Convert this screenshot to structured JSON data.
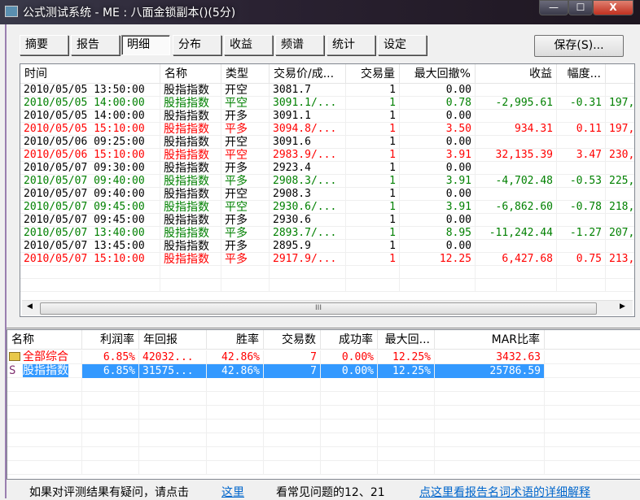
{
  "window": {
    "title": "公式测试系统 - ME : 八面金锁副本()(5分)",
    "minimize": "—",
    "maximize": "☐",
    "close": "X"
  },
  "tabs": [
    "摘要",
    "报告",
    "明细",
    "分布",
    "收益",
    "频谱",
    "统计",
    "设定"
  ],
  "active_tab": "明细",
  "save_label": "保存(S)...",
  "trades": {
    "columns": [
      "时间",
      "名称",
      "类型",
      "交易价/成...",
      "交易量",
      "最大回撤%",
      "收益",
      "幅度..."
    ],
    "rows": [
      {
        "color": "black",
        "time": "2010/05/05 13:50:00",
        "name": "股指指数",
        "type": "开空",
        "price": "3081.7",
        "qty": "1",
        "dd": "0.00",
        "profit": "",
        "amp": "",
        "extra": ""
      },
      {
        "color": "green",
        "time": "2010/05/05 14:00:00",
        "name": "股指指数",
        "type": "平空",
        "price": "3091.1/...",
        "qty": "1",
        "dd": "0.78",
        "profit": "-2,995.61",
        "amp": "-0.31",
        "extra": "197,"
      },
      {
        "color": "black",
        "time": "2010/05/05 14:00:00",
        "name": "股指指数",
        "type": "开多",
        "price": "3091.1",
        "qty": "1",
        "dd": "0.00",
        "profit": "",
        "amp": "",
        "extra": ""
      },
      {
        "color": "red",
        "time": "2010/05/05 15:10:00",
        "name": "股指指数",
        "type": "平多",
        "price": "3094.8/...",
        "qty": "1",
        "dd": "3.50",
        "profit": "934.31",
        "amp": "0.11",
        "extra": "197,"
      },
      {
        "color": "black",
        "time": "2010/05/06 09:25:00",
        "name": "股指指数",
        "type": "开空",
        "price": "3091.6",
        "qty": "1",
        "dd": "0.00",
        "profit": "",
        "amp": "",
        "extra": ""
      },
      {
        "color": "red",
        "time": "2010/05/06 15:10:00",
        "name": "股指指数",
        "type": "平空",
        "price": "2983.9/...",
        "qty": "1",
        "dd": "3.91",
        "profit": "32,135.39",
        "amp": "3.47",
        "extra": "230,"
      },
      {
        "color": "black",
        "time": "2010/05/07 09:30:00",
        "name": "股指指数",
        "type": "开多",
        "price": "2923.4",
        "qty": "1",
        "dd": "0.00",
        "profit": "",
        "amp": "",
        "extra": ""
      },
      {
        "color": "green",
        "time": "2010/05/07 09:40:00",
        "name": "股指指数",
        "type": "平多",
        "price": "2908.3/...",
        "qty": "1",
        "dd": "3.91",
        "profit": "-4,702.48",
        "amp": "-0.53",
        "extra": "225,"
      },
      {
        "color": "black",
        "time": "2010/05/07 09:40:00",
        "name": "股指指数",
        "type": "开空",
        "price": "2908.3",
        "qty": "1",
        "dd": "0.00",
        "profit": "",
        "amp": "",
        "extra": ""
      },
      {
        "color": "green",
        "time": "2010/05/07 09:45:00",
        "name": "股指指数",
        "type": "平空",
        "price": "2930.6/...",
        "qty": "1",
        "dd": "3.91",
        "profit": "-6,862.60",
        "amp": "-0.78",
        "extra": "218,"
      },
      {
        "color": "black",
        "time": "2010/05/07 09:45:00",
        "name": "股指指数",
        "type": "开多",
        "price": "2930.6",
        "qty": "1",
        "dd": "0.00",
        "profit": "",
        "amp": "",
        "extra": ""
      },
      {
        "color": "green",
        "time": "2010/05/07 13:40:00",
        "name": "股指指数",
        "type": "平多",
        "price": "2893.7/...",
        "qty": "1",
        "dd": "8.95",
        "profit": "-11,242.44",
        "amp": "-1.27",
        "extra": "207,"
      },
      {
        "color": "black",
        "time": "2010/05/07 13:45:00",
        "name": "股指指数",
        "type": "开多",
        "price": "2895.9",
        "qty": "1",
        "dd": "0.00",
        "profit": "",
        "amp": "",
        "extra": ""
      },
      {
        "color": "red",
        "time": "2010/05/07 15:10:00",
        "name": "股指指数",
        "type": "平多",
        "price": "2917.9/...",
        "qty": "1",
        "dd": "12.25",
        "profit": "6,427.68",
        "amp": "0.75",
        "extra": "213,"
      }
    ],
    "scroll_grip": "III"
  },
  "summary": {
    "columns": [
      "名称",
      "利润率",
      "年回报",
      "胜率",
      "交易数",
      "成功率",
      "最大回...",
      "MAR比率"
    ],
    "rows": [
      {
        "icon": "folder-icon",
        "name": "全部综合",
        "profit_rate": "6.85%",
        "annual": "42032...",
        "win": "42.86%",
        "trades": "7",
        "success": "0.00%",
        "dd": "12.25%",
        "mar": "3432.63",
        "selected": false
      },
      {
        "icon": "s-icon",
        "icon_text": "S",
        "name": "股指指数",
        "profit_rate": "6.85%",
        "annual": "31575...",
        "win": "42.86%",
        "trades": "7",
        "success": "0.00%",
        "dd": "12.25%",
        "mar": "25786.59",
        "selected": true
      }
    ]
  },
  "footer": {
    "text1": "如果对评测结果有疑问，请点击",
    "link1": "这里",
    "text2": "看常见问题的12、21",
    "link2": "点这里看报告名词术语的详细解释"
  },
  "colors": {
    "green": "#008000",
    "red": "#ff0000",
    "selection": "#3399ff",
    "link": "#0066cc"
  }
}
